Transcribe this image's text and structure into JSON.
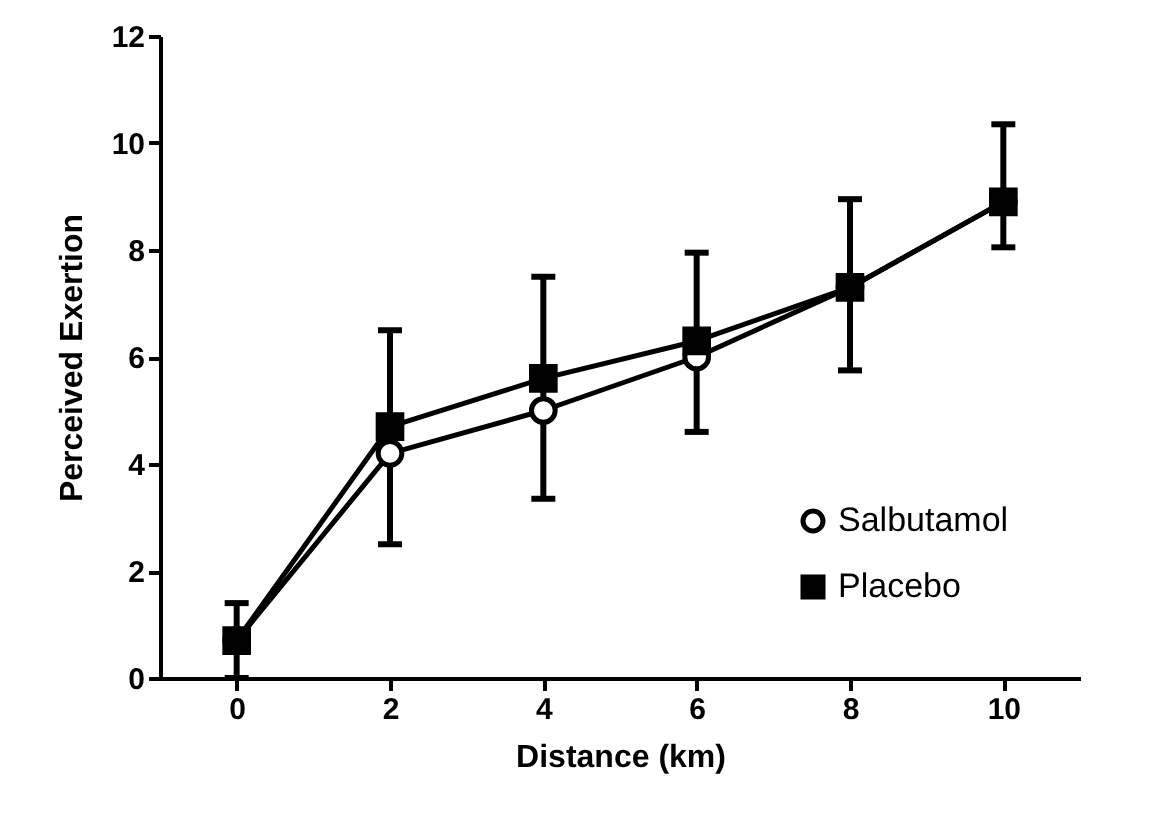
{
  "chart_data": {
    "type": "line",
    "xlabel": "Distance (km)",
    "ylabel": "Perceived  Exertion",
    "x": [
      0,
      2,
      4,
      6,
      8,
      10
    ],
    "series": [
      {
        "name": "Salbutamol",
        "color": "#000000",
        "marker": "circle",
        "values": [
          0.7,
          4.2,
          5.0,
          6.0,
          7.3,
          8.9
        ]
      },
      {
        "name": "Placebo",
        "color": "#000000",
        "marker": "square",
        "values": [
          0.7,
          4.7,
          5.6,
          6.3,
          7.3,
          8.9
        ],
        "errors": [
          [
            0,
            1.4
          ],
          [
            2.5,
            6.5
          ],
          [
            3.35,
            7.5
          ],
          [
            4.6,
            7.95
          ],
          [
            5.75,
            8.95
          ],
          [
            8.05,
            10.35
          ]
        ]
      }
    ],
    "xlim": [
      -1,
      11
    ],
    "xticks": [
      0,
      2,
      4,
      6,
      8,
      10
    ],
    "ylim": [
      0,
      12
    ],
    "yticks": [
      0,
      2,
      4,
      6,
      8,
      10,
      12
    ],
    "grid": false,
    "legend": "bottom right",
    "line_style": "solid"
  }
}
